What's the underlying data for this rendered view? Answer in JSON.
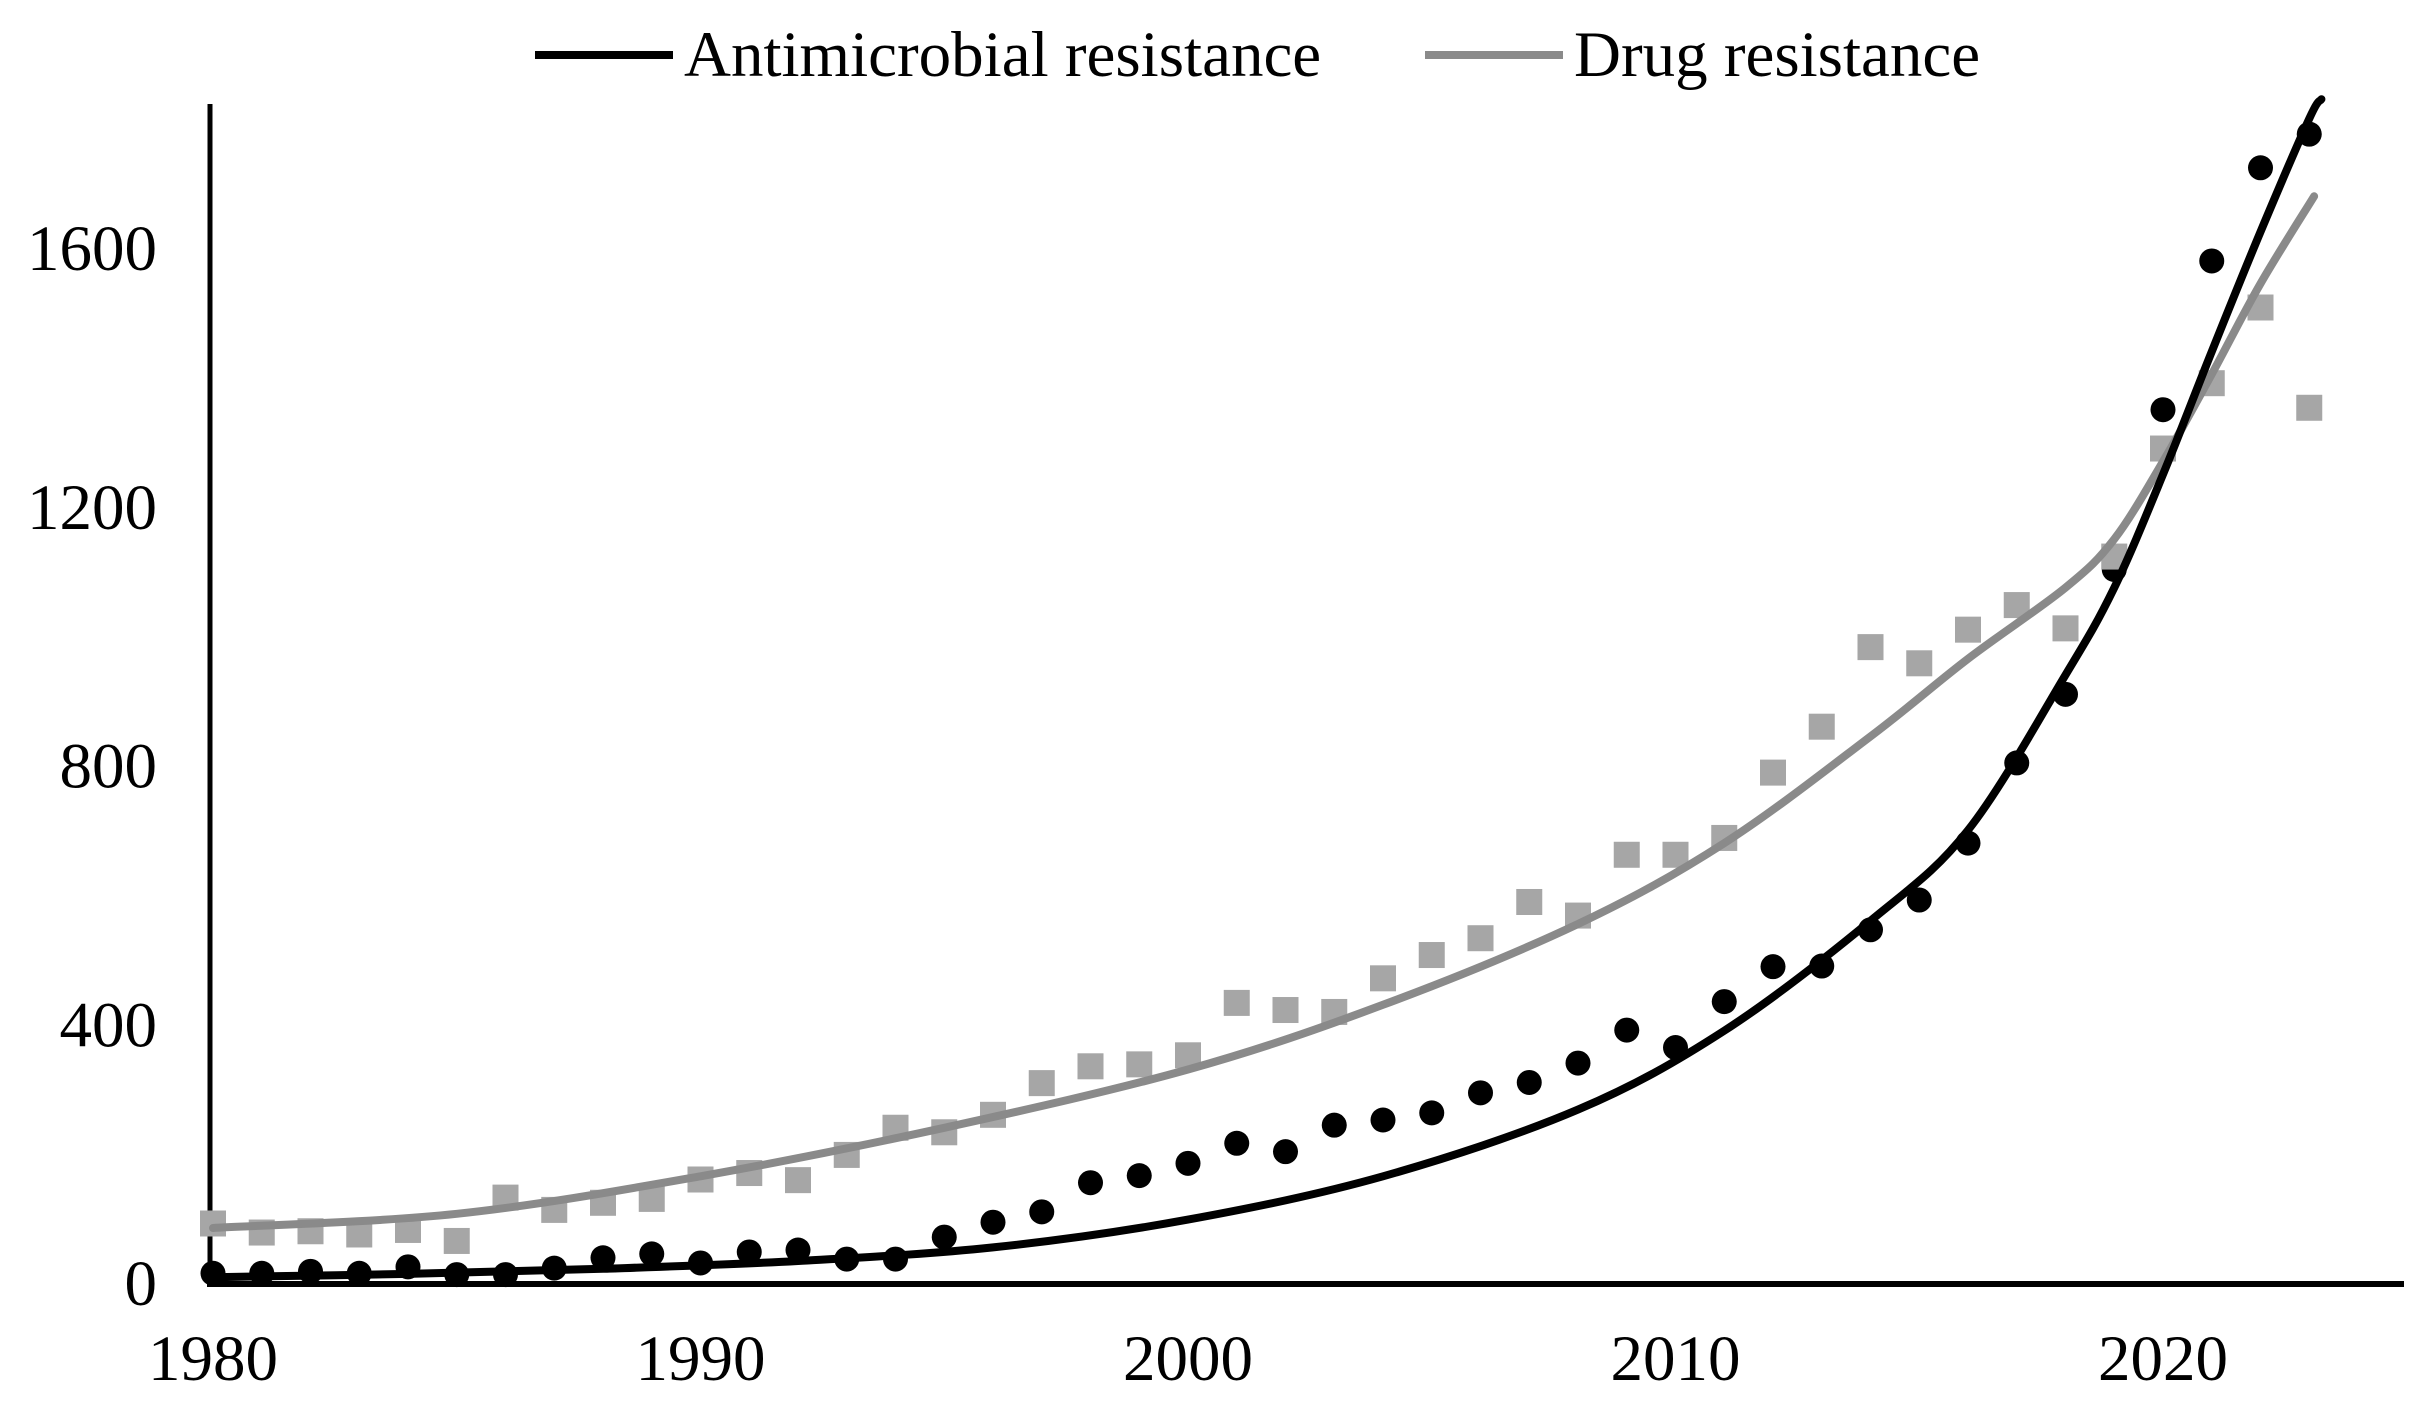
{
  "figure": {
    "background": "#ffffff",
    "title": ""
  },
  "legend": {
    "items": [
      {
        "label": "Antimicrobial resistance",
        "color": "#000000",
        "marker": "line"
      },
      {
        "label": "Drug resistance",
        "color": "#8a8a8a",
        "marker": "line"
      }
    ]
  },
  "chart_data": {
    "type": "scatter",
    "title": "",
    "xlabel": "",
    "ylabel": "",
    "grid": false,
    "legend_position": "top",
    "x_ticks": [
      1980,
      1990,
      2000,
      2010,
      2020
    ],
    "y_ticks": [
      0,
      400,
      800,
      1200,
      1600
    ],
    "xlim": [
      1980,
      2024.5
    ],
    "ylim": [
      0,
      1820
    ],
    "x": [
      1980,
      1981,
      1982,
      1983,
      1984,
      1985,
      1986,
      1987,
      1988,
      1989,
      1990,
      1991,
      1992,
      1993,
      1994,
      1995,
      1996,
      1997,
      1998,
      1999,
      2000,
      2001,
      2002,
      2003,
      2004,
      2005,
      2006,
      2007,
      2008,
      2009,
      2010,
      2011,
      2012,
      2013,
      2014,
      2015,
      2016,
      2017,
      2018,
      2019,
      2020,
      2021,
      2022,
      2023
    ],
    "series": [
      {
        "name": "Antimicrobial resistance",
        "marker": "circle",
        "color": "#000000",
        "values": [
          15,
          15,
          18,
          15,
          25,
          13,
          13,
          23,
          39,
          45,
          31,
          48,
          51,
          37,
          37,
          71,
          94,
          110,
          155,
          166,
          185,
          216,
          203,
          244,
          252,
          263,
          294,
          310,
          340,
          391,
          364,
          435,
          489,
          490,
          546,
          592,
          680,
          804,
          910,
          1103,
          1350,
          1580,
          1724,
          1776
        ]
      },
      {
        "name": "Drug resistance",
        "marker": "square",
        "color": "#a6a6a6",
        "values": [
          92,
          78,
          80,
          75,
          82,
          65,
          132,
          113,
          124,
          130,
          160,
          170,
          159,
          198,
          240,
          233,
          260,
          309,
          335,
          338,
          352,
          433,
          422,
          419,
          471,
          507,
          533,
          589,
          568,
          662,
          662,
          688,
          789,
          860,
          983,
          958,
          1010,
          1048,
          1012,
          1123,
          1290,
          1391,
          1508,
          1353
        ]
      }
    ],
    "trendlines": [
      {
        "series": "Drug resistance",
        "color": "#8a8a8a",
        "stroke_width": 8,
        "points": [
          [
            1980,
            85
          ],
          [
            1985,
            107
          ],
          [
            1990,
            165
          ],
          [
            1995,
            240
          ],
          [
            2000,
            330
          ],
          [
            2004,
            430
          ],
          [
            2008,
            555
          ],
          [
            2011,
            680
          ],
          [
            2014,
            845
          ],
          [
            2016,
            965
          ],
          [
            2018,
            1075
          ],
          [
            2019,
            1150
          ],
          [
            2020,
            1270
          ],
          [
            2021,
            1405
          ],
          [
            2022,
            1545
          ],
          [
            2023.1,
            1680
          ]
        ]
      },
      {
        "series": "Antimicrobial resistance",
        "color": "#000000",
        "stroke_width": 8,
        "points": [
          [
            1980,
            9
          ],
          [
            1984,
            14
          ],
          [
            1988,
            22
          ],
          [
            1992,
            34
          ],
          [
            1996,
            55
          ],
          [
            2000,
            98
          ],
          [
            2004,
            165
          ],
          [
            2008,
            268
          ],
          [
            2011,
            390
          ],
          [
            2014,
            560
          ],
          [
            2016,
            700
          ],
          [
            2018,
            940
          ],
          [
            2019,
            1075
          ],
          [
            2020,
            1250
          ],
          [
            2021,
            1440
          ],
          [
            2022,
            1625
          ],
          [
            2023,
            1800
          ],
          [
            2023.25,
            1830
          ]
        ]
      }
    ],
    "axis_color": "#000000",
    "tick_label_color": "#000000"
  }
}
